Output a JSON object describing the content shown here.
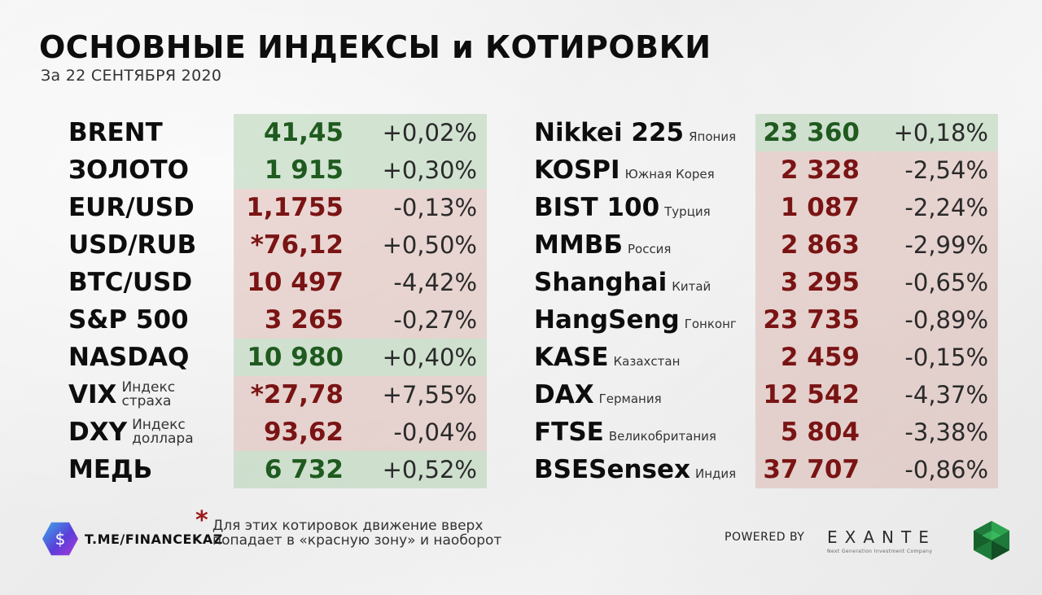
{
  "header": {
    "title": "ОСНОВНЫЕ ИНДЕКСЫ и КОТИРОВКИ",
    "subtitle": "За 22 СЕНТЯБРЯ 2020"
  },
  "left_table": [
    {
      "name": "BRENT",
      "sub1": "",
      "sub2": "",
      "value": "41,45",
      "change": "+0,02%",
      "dir": "up"
    },
    {
      "name": "ЗОЛОТО",
      "sub1": "",
      "sub2": "",
      "value": "1 915",
      "change": "+0,30%",
      "dir": "up"
    },
    {
      "name": "EUR/USD",
      "sub1": "",
      "sub2": "",
      "value": "1,1755",
      "change": "-0,13%",
      "dir": "down"
    },
    {
      "name": "USD/RUB",
      "sub1": "",
      "sub2": "",
      "value": "*76,12",
      "change": "+0,50%",
      "dir": "down"
    },
    {
      "name": "BTC/USD",
      "sub1": "",
      "sub2": "",
      "value": "10 497",
      "change": "-4,42%",
      "dir": "down"
    },
    {
      "name": "S&P 500",
      "sub1": "",
      "sub2": "",
      "value": "3 265",
      "change": "-0,27%",
      "dir": "down"
    },
    {
      "name": "NASDAQ",
      "sub1": "",
      "sub2": "",
      "value": "10 980",
      "change": "+0,40%",
      "dir": "up"
    },
    {
      "name": "VIX",
      "sub1": "Индекс",
      "sub2": "страха",
      "value": "*27,78",
      "change": "+7,55%",
      "dir": "down"
    },
    {
      "name": "DXY",
      "sub1": "Индекс",
      "sub2": "доллара",
      "value": "93,62",
      "change": "-0,04%",
      "dir": "down"
    },
    {
      "name": "МЕДЬ",
      "sub1": "",
      "sub2": "",
      "value": "6 732",
      "change": "+0,52%",
      "dir": "up"
    }
  ],
  "right_table": [
    {
      "name": "Nikkei 225",
      "country": "Япония",
      "value": "23 360",
      "change": "+0,18%",
      "dir": "up"
    },
    {
      "name": "KOSPI",
      "country": "Южная Корея",
      "value": "2 328",
      "change": "-2,54%",
      "dir": "down"
    },
    {
      "name": "BIST 100",
      "country": "Турция",
      "value": "1 087",
      "change": "-2,24%",
      "dir": "down"
    },
    {
      "name": "ММВБ",
      "country": "Россия",
      "value": "2 863",
      "change": "-2,99%",
      "dir": "down"
    },
    {
      "name": "Shanghai",
      "country": "Китай",
      "value": "3 295",
      "change": "-0,65%",
      "dir": "down"
    },
    {
      "name": "HangSeng",
      "country": "Гонконг",
      "value": "23 735",
      "change": "-0,89%",
      "dir": "down"
    },
    {
      "name": "KASE",
      "country": "Казахстан",
      "value": "2 459",
      "change": "-0,15%",
      "dir": "down"
    },
    {
      "name": "DAX",
      "country": "Германия",
      "value": "12 542",
      "change": "-4,37%",
      "dir": "down"
    },
    {
      "name": "FTSE",
      "country": "Великобритания",
      "value": "5 804",
      "change": "-3,38%",
      "dir": "down"
    },
    {
      "name": "BSESensex",
      "country": "Индия",
      "value": "37 707",
      "change": "-0,86%",
      "dir": "down"
    }
  ],
  "footer": {
    "channel": "T.ME/FINANCEKAZ",
    "asterisk": "*",
    "note": "Для этих котировок движение вверх попадает в «красную зону» и наоборот",
    "powered_by": "POWERED BY",
    "sponsor": "EXANTE",
    "sponsor_tagline": "Next Generation Investment Company"
  },
  "colors": {
    "up_text": "#1f5a1f",
    "down_text": "#7a1414",
    "up_bg": "#bcd6bc",
    "down_bg": "#e0c3bc",
    "asterisk": "#9c1a1a"
  }
}
